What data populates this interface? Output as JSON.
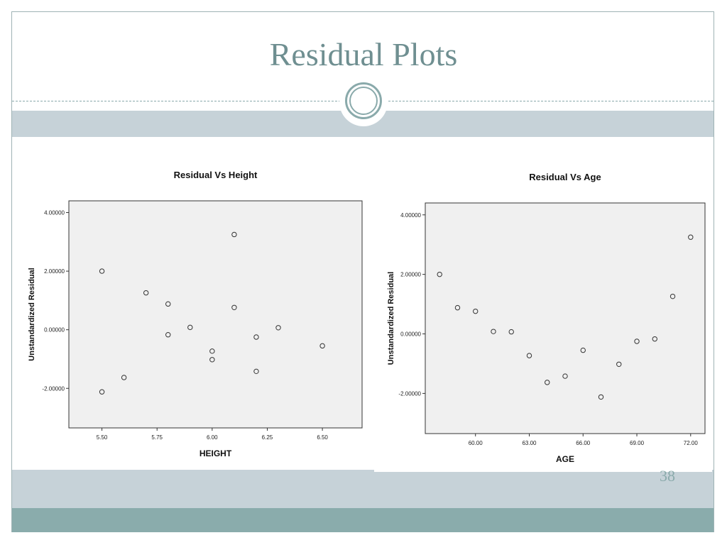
{
  "slide": {
    "title": "Residual Plots",
    "number": "38"
  },
  "chart_data": [
    {
      "type": "scatter",
      "title": "Residual Vs Height",
      "xlabel": "HEIGHT",
      "ylabel": "Unstandardized Residual",
      "xlim": [
        5.35,
        6.68
      ],
      "ylim": [
        -3.35,
        4.4
      ],
      "xticks": [
        5.5,
        5.75,
        6.0,
        6.25,
        6.5
      ],
      "xtick_labels": [
        "5.50",
        "5.75",
        "6.00",
        "6.25",
        "6.50"
      ],
      "yticks": [
        -2,
        0,
        2,
        4
      ],
      "ytick_labels": [
        "-2.00000",
        "0.00000",
        "2.00000",
        "4.00000"
      ],
      "grid": false,
      "points": [
        {
          "x": 5.5,
          "y": 2.0
        },
        {
          "x": 5.5,
          "y": -2.12
        },
        {
          "x": 5.6,
          "y": -1.63
        },
        {
          "x": 5.7,
          "y": 1.26
        },
        {
          "x": 5.8,
          "y": 0.88
        },
        {
          "x": 5.8,
          "y": -0.17
        },
        {
          "x": 5.9,
          "y": 0.08
        },
        {
          "x": 6.0,
          "y": -0.73
        },
        {
          "x": 6.0,
          "y": -1.02
        },
        {
          "x": 6.1,
          "y": 3.25
        },
        {
          "x": 6.1,
          "y": 0.76
        },
        {
          "x": 6.2,
          "y": -0.25
        },
        {
          "x": 6.2,
          "y": -1.42
        },
        {
          "x": 6.3,
          "y": 0.07
        },
        {
          "x": 6.5,
          "y": -0.55
        }
      ]
    },
    {
      "type": "scatter",
      "title": "Residual Vs Age",
      "xlabel": "AGE",
      "ylabel": "Unstandardized Residual",
      "xlim": [
        57.2,
        72.8
      ],
      "ylim": [
        -3.35,
        4.4
      ],
      "xticks": [
        60,
        63,
        66,
        69,
        72
      ],
      "xtick_labels": [
        "60.00",
        "63.00",
        "66.00",
        "69.00",
        "72.00"
      ],
      "yticks": [
        -2,
        0,
        2,
        4
      ],
      "ytick_labels": [
        "-2.00000",
        "0.00000",
        "2.00000",
        "4.00000"
      ],
      "grid": false,
      "points": [
        {
          "x": 58,
          "y": 2.0
        },
        {
          "x": 59,
          "y": 0.88
        },
        {
          "x": 60,
          "y": 0.76
        },
        {
          "x": 61,
          "y": 0.08
        },
        {
          "x": 62,
          "y": 0.07
        },
        {
          "x": 63,
          "y": -0.73
        },
        {
          "x": 64,
          "y": -1.63
        },
        {
          "x": 65,
          "y": -1.42
        },
        {
          "x": 66,
          "y": -0.55
        },
        {
          "x": 67,
          "y": -2.12
        },
        {
          "x": 68,
          "y": -1.02
        },
        {
          "x": 69,
          "y": -0.25
        },
        {
          "x": 70,
          "y": -0.17
        },
        {
          "x": 71,
          "y": 1.26
        },
        {
          "x": 72,
          "y": 3.25
        }
      ]
    }
  ]
}
